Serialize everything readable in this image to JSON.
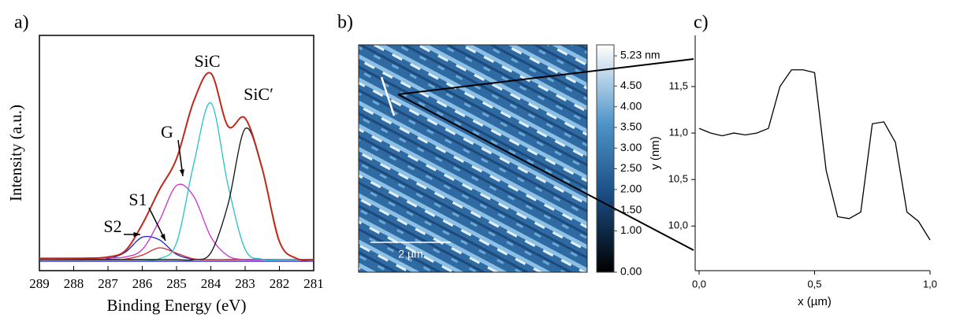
{
  "chart_data": [
    {
      "type": "line",
      "panel_label": "a)",
      "xlabel": "Binding Energy (eV)",
      "ylabel": "Intensity (a.u.)",
      "x": [
        289,
        288.5,
        288,
        287.5,
        287,
        286.5,
        286,
        285.5,
        285,
        284.5,
        284,
        283.5,
        283,
        282.5,
        282,
        281.5,
        281
      ],
      "series": [
        {
          "color": "#2b2bd6",
          "values": [
            4.0,
            4.0,
            4.0,
            4.0,
            4.0,
            4.0,
            4.0,
            4.0,
            4.0,
            4.0,
            4.0,
            4.0,
            4.0,
            4.0,
            4.0,
            4.0,
            4.0
          ]
        },
        {
          "color": "#2020c8",
          "values": [
            4.7,
            4.7,
            4.7,
            4.7,
            5.0,
            7.8,
            14.2,
            13.1,
            6.9,
            4.9,
            4.7,
            4.7,
            4.7,
            4.7,
            4.7,
            4.7,
            4.7
          ]
        },
        {
          "color": "#d42a2a",
          "values": [
            4.7,
            4.7,
            4.7,
            4.7,
            4.7,
            4.9,
            6.6,
            9.7,
            7.4,
            5.0,
            4.7,
            4.7,
            4.7,
            4.7,
            4.7,
            4.7,
            4.7
          ]
        },
        {
          "color": "#c832c8",
          "values": [
            5.4,
            5.4,
            5.4,
            5.4,
            5.4,
            5.8,
            9.0,
            21.3,
            36.2,
            31.6,
            14.4,
            6.3,
            4.7,
            4.7,
            4.7,
            4.7,
            4.7
          ]
        },
        {
          "color": "#22c4c4",
          "values": [
            4.7,
            4.7,
            4.7,
            4.7,
            4.7,
            4.7,
            4.7,
            5.1,
            11.9,
            45.3,
            71.3,
            36.4,
            9.1,
            4.9,
            4.7,
            4.7,
            4.7
          ]
        },
        {
          "color": "#111111",
          "values": [
            4.7,
            4.7,
            4.7,
            4.7,
            4.7,
            4.7,
            4.7,
            4.7,
            4.7,
            4.7,
            7.6,
            28.1,
            60.3,
            43.1,
            12.4,
            5.2,
            4.7
          ]
        },
        {
          "color": "#c0281e",
          "values": [
            5.0,
            5.0,
            5.1,
            5.3,
            5.8,
            8.4,
            19.7,
            34.4,
            47.6,
            72.0,
            83.9,
            61.4,
            64.8,
            43.3,
            12.4,
            5.2,
            4.7
          ]
        }
      ],
      "xlim": [
        289,
        281
      ],
      "xticks": [
        289,
        288,
        287,
        286,
        285,
        284,
        283,
        282,
        281
      ],
      "ylim": [
        0,
        100
      ],
      "annotations": [
        "S2",
        "S1",
        "G",
        "SiC",
        "SiC′"
      ]
    },
    {
      "type": "image",
      "panel_label": "b)",
      "scalebar_label": "2 µm",
      "clim": [
        0,
        5.23
      ],
      "cticks": [
        {
          "value": 0,
          "label": "0.00"
        },
        {
          "value": 1,
          "label": "1.00"
        },
        {
          "value": 1.5,
          "label": "1.50"
        },
        {
          "value": 2,
          "label": "2.00"
        },
        {
          "value": 2.5,
          "label": "2.50"
        },
        {
          "value": 3,
          "label": "3.00"
        },
        {
          "value": 3.5,
          "label": "3.50"
        },
        {
          "value": 4,
          "label": "4.00"
        },
        {
          "value": 4.5,
          "label": "4.50"
        },
        {
          "value": 5.23,
          "label": "5.23 nm"
        }
      ]
    },
    {
      "type": "line",
      "panel_label": "c)",
      "xlabel": "x (µm)",
      "ylabel": "y (nm)",
      "x": [
        0,
        0.05,
        0.1,
        0.15,
        0.2,
        0.25,
        0.3,
        0.35,
        0.4,
        0.45,
        0.5,
        0.55,
        0.6,
        0.65,
        0.7,
        0.75,
        0.8,
        0.85,
        0.9,
        0.95,
        1.0
      ],
      "series": [
        {
          "color": "#000000",
          "values": [
            11.05,
            11.0,
            10.97,
            11.0,
            10.98,
            11.0,
            11.05,
            11.5,
            11.68,
            11.68,
            11.65,
            10.6,
            10.1,
            10.08,
            10.15,
            11.1,
            11.12,
            10.9,
            10.15,
            10.05,
            9.85
          ]
        }
      ],
      "xlim": [
        0,
        1
      ],
      "xticks": [
        {
          "value": 0,
          "label": "0,0"
        },
        {
          "value": 0.5,
          "label": "0,5"
        },
        {
          "value": 1,
          "label": "1,0"
        }
      ],
      "ylim": [
        9.52,
        12.05
      ],
      "yticks": [
        {
          "value": 10,
          "label": "10,0"
        },
        {
          "value": 10.5,
          "label": "10,5"
        },
        {
          "value": 11,
          "label": "11,0"
        },
        {
          "value": 11.5,
          "label": "11,5"
        }
      ]
    }
  ]
}
